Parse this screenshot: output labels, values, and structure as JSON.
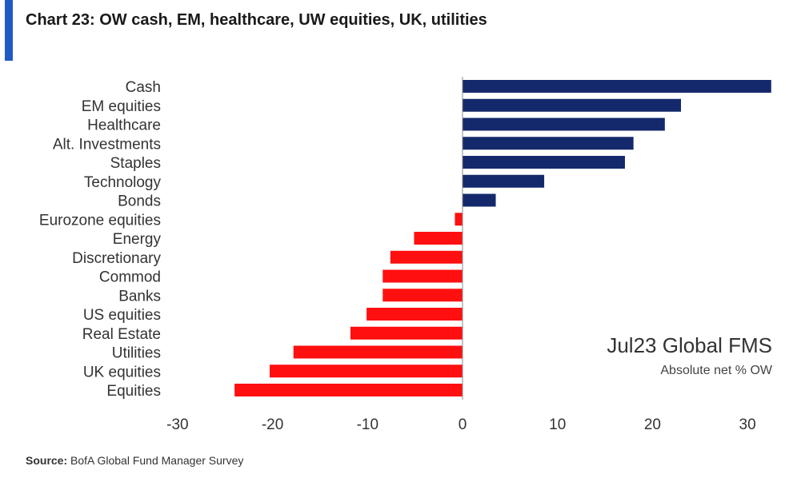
{
  "title": "Chart 23: OW cash, EM, healthcare, UW equities, UK, utilities",
  "source": {
    "label": "Source:",
    "text": "BofA Global Fund Manager Survey"
  },
  "colors": {
    "accent": "#1f5bc4",
    "positive": "#14296b",
    "negative": "#ff0f0f",
    "axis": "#8a8a8a"
  },
  "chart_data": {
    "type": "bar",
    "orientation": "horizontal",
    "categories": [
      "Cash",
      "EM equities",
      "Healthcare",
      "Alt. Investments",
      "Staples",
      "Technology",
      "Bonds",
      "Eurozone equities",
      "Energy",
      "Discretionary",
      "Commod",
      "Banks",
      "US equities",
      "Real Estate",
      "Utilities",
      "UK equities",
      "Equities"
    ],
    "values": [
      32.5,
      23,
      21.3,
      18,
      17.1,
      8.6,
      3.5,
      -0.8,
      -5.1,
      -7.6,
      -8.4,
      -8.4,
      -10.1,
      -11.8,
      -17.8,
      -20.3,
      -24
    ],
    "xlim": [
      -30,
      30
    ],
    "xticks": [
      -30,
      -20,
      -10,
      0,
      10,
      20,
      30
    ],
    "annotation": {
      "main": "Jul23 Global FMS",
      "sub": "Absolute net % OW"
    },
    "grid": false,
    "legend": "none"
  }
}
